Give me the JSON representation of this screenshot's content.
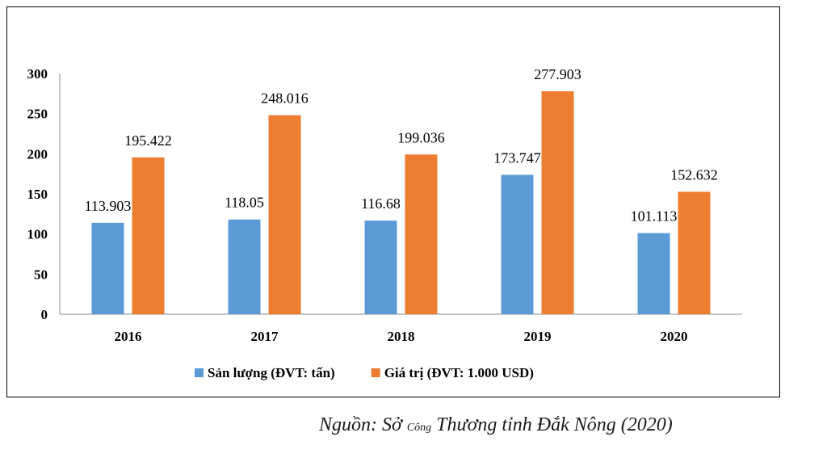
{
  "source_note": {
    "prefix": "Nguồn: Sở ",
    "small": "Công",
    "suffix": " Thương tỉnh Đắk Nông (2020)"
  },
  "chart_data": {
    "type": "bar",
    "categories": [
      "2016",
      "2017",
      "2018",
      "2019",
      "2020"
    ],
    "series": [
      {
        "name": "Sản lượng (ĐVT: tấn)",
        "color": "#5b9bd5",
        "values": [
          113.903,
          118.05,
          116.68,
          173.747,
          101.113
        ],
        "labels": [
          "113.903",
          "118.05",
          "116.68",
          "173.747",
          "101.113"
        ]
      },
      {
        "name": "Giá trị (ĐVT: 1.000 USD)",
        "color": "#ed7d31",
        "values": [
          195.422,
          248.016,
          199.036,
          277.903,
          152.632
        ],
        "labels": [
          "195.422",
          "248.016",
          "199.036",
          "277.903",
          "152.632"
        ]
      }
    ],
    "y_ticks": [
      "0",
      "50",
      "100",
      "150",
      "200",
      "250",
      "300"
    ],
    "ylim": [
      0,
      300
    ],
    "legend_position": "bottom",
    "grid": false
  }
}
